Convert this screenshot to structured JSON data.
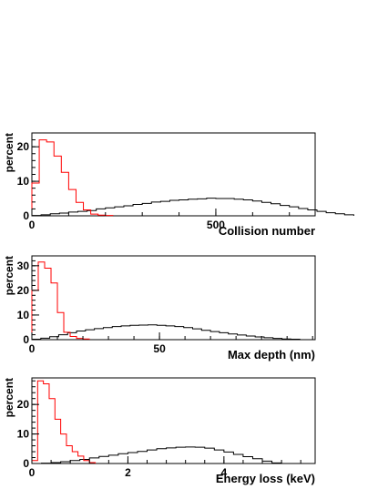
{
  "chart_data": [
    {
      "type": "histogram",
      "ylabel": "percent",
      "xlabel": "Collision number",
      "xlim": [
        0,
        770
      ],
      "ylim": [
        0,
        24
      ],
      "xticks": [
        0,
        500
      ],
      "yticks": [
        0,
        10,
        20
      ],
      "grid": false,
      "series": [
        {
          "color": "#000000",
          "bin_width": 25,
          "values": [
            0.1,
            0.3,
            0.6,
            0.8,
            1.1,
            1.3,
            1.5,
            2.0,
            2.3,
            2.6,
            2.9,
            3.3,
            3.6,
            4.0,
            4.2,
            4.5,
            4.6,
            4.8,
            4.9,
            5.1,
            5.0,
            5.0,
            4.8,
            4.6,
            4.3,
            3.9,
            3.5,
            3.0,
            2.6,
            2.1,
            1.7,
            1.3,
            0.9,
            0.6,
            0.3
          ]
        },
        {
          "color": "#ff0000",
          "bin_width": 20,
          "values": [
            9.5,
            22.0,
            21.4,
            17.3,
            12.6,
            7.6,
            3.9,
            1.7,
            0.5,
            0.2,
            0.1
          ]
        }
      ]
    },
    {
      "type": "histogram",
      "ylabel": "percent",
      "xlabel": "Max depth (nm)",
      "xlim": [
        0,
        111
      ],
      "ylim": [
        0,
        34
      ],
      "xticks": [
        0,
        50
      ],
      "yticks": [
        0,
        10,
        20,
        30
      ],
      "grid": false,
      "series": [
        {
          "color": "#000000",
          "bin_width": 3.5,
          "values": [
            0.2,
            0.6,
            1.2,
            2.0,
            2.8,
            3.5,
            4.0,
            4.5,
            4.9,
            5.3,
            5.6,
            5.8,
            5.9,
            6.0,
            5.8,
            5.6,
            5.3,
            4.9,
            4.4,
            3.8,
            3.3,
            2.8,
            2.3,
            1.9,
            1.5,
            1.1,
            0.8,
            0.5,
            0.3,
            0.2
          ]
        },
        {
          "color": "#ff0000",
          "bin_width": 2.5,
          "values": [
            20.0,
            31.5,
            29.0,
            23.0,
            11.0,
            3.0,
            1.3,
            0.5,
            0.3
          ]
        }
      ]
    },
    {
      "type": "histogram",
      "ylabel": "percent",
      "xlabel": "Energy loss (keV)",
      "xlim": [
        0,
        5.9
      ],
      "ylim": [
        0,
        29
      ],
      "xticks": [
        0,
        2,
        4
      ],
      "yticks": [
        0,
        10,
        20
      ],
      "grid": false,
      "series": [
        {
          "color": "#000000",
          "bin_width": 0.2,
          "values": [
            0,
            0.1,
            0.3,
            0.6,
            1.0,
            1.4,
            1.9,
            2.4,
            2.8,
            3.3,
            3.7,
            4.1,
            4.6,
            5.0,
            5.3,
            5.5,
            5.6,
            5.5,
            5.2,
            4.6,
            3.9,
            3.1,
            2.3,
            1.6,
            0.8,
            0.2
          ]
        },
        {
          "color": "#ff0000",
          "bin_width": 0.12,
          "values": [
            1.0,
            28.0,
            27.0,
            22.0,
            15.0,
            10.0,
            6.0,
            4.0,
            2.5,
            1.0,
            0.3
          ]
        }
      ]
    }
  ]
}
